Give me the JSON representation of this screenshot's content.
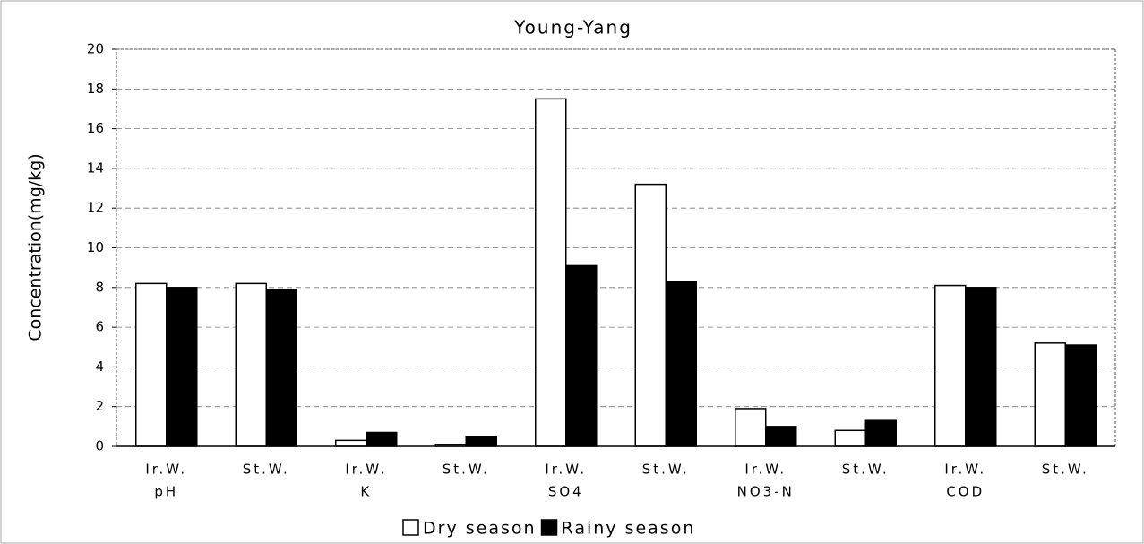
{
  "chart_data": {
    "type": "bar",
    "title": "Young-Yang",
    "y_label": "Concentration(mg/kg)",
    "categories": [
      [
        "Ir.W.",
        "pH"
      ],
      [
        "St.W."
      ],
      [
        "Ir.W.",
        "K"
      ],
      [
        "St.W."
      ],
      [
        "Ir.W.",
        "SO4"
      ],
      [
        "St.W."
      ],
      [
        "Ir.W.",
        "NO3-N"
      ],
      [
        "St.W."
      ],
      [
        "Ir.W.",
        "COD"
      ],
      [
        "St.W."
      ]
    ],
    "series": [
      {
        "name": "Dry season",
        "color": "#ffffff",
        "values": [
          8.2,
          8.2,
          0.3,
          0.1,
          17.5,
          13.2,
          1.9,
          0.8,
          8.1,
          5.2
        ]
      },
      {
        "name": "Rainy season",
        "color": "#000000",
        "values": [
          8.0,
          7.9,
          0.7,
          0.5,
          9.1,
          8.3,
          1.0,
          1.3,
          8.0,
          5.1
        ]
      }
    ],
    "ylim": [
      0,
      20
    ],
    "yticks": [
      0,
      2,
      4,
      6,
      8,
      10,
      12,
      14,
      16,
      18,
      20
    ],
    "grid": true,
    "legend": "bottom"
  }
}
